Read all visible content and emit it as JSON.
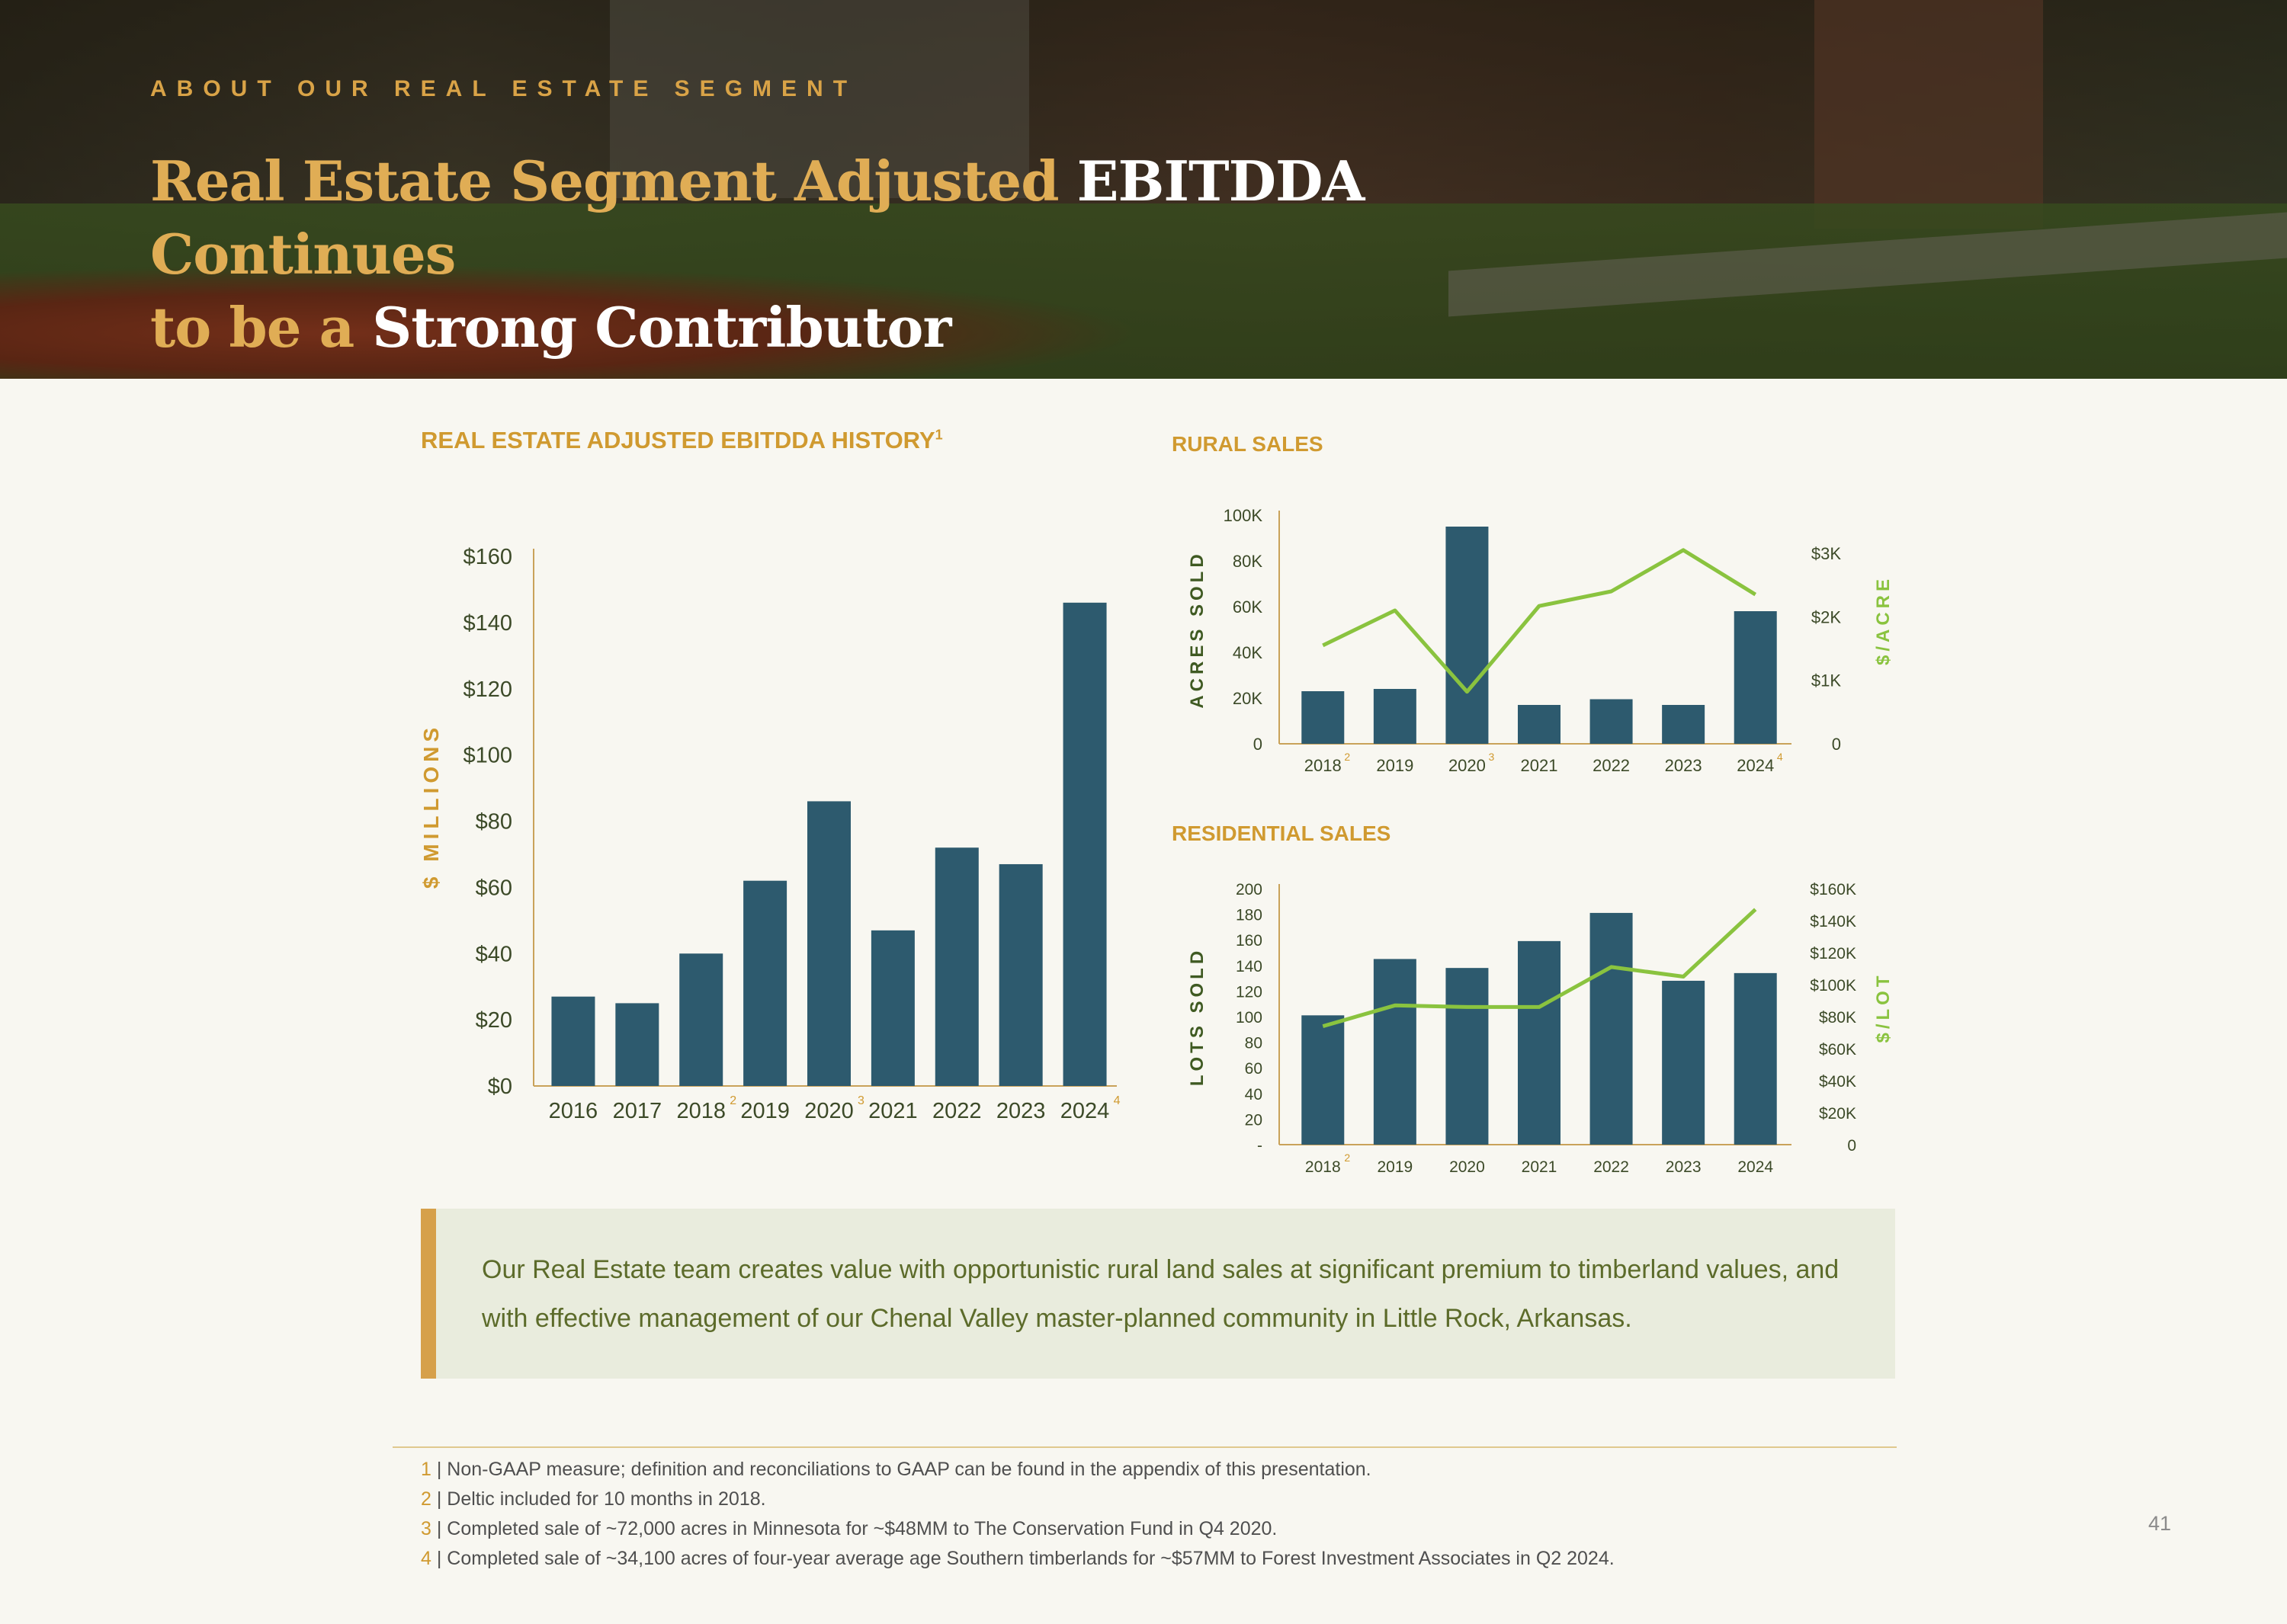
{
  "header": {
    "eyebrow": "ABOUT OUR REAL ESTATE SEGMENT",
    "title_part1": "Real Estate Segment Adjusted ",
    "title_part2": "EBITDDA",
    "title_part3": " Continues",
    "title_part4": "to be a ",
    "title_part5": "Strong Contributor"
  },
  "colors": {
    "bar": "#2d5a6e",
    "line": "#8ac33f",
    "gold": "#d09a30",
    "axis_title": "#3f5a22"
  },
  "chart_data": [
    {
      "id": "ebitdda",
      "type": "bar",
      "title": "REAL ESTATE ADJUSTED EBITDDA HISTORY",
      "title_sup": "1",
      "ylabel": "$ MILLIONS",
      "categories": [
        "2016",
        "2017",
        "2018",
        "2019",
        "2020",
        "2021",
        "2022",
        "2023",
        "2024"
      ],
      "category_notes": [
        "",
        "",
        "2",
        "",
        "3",
        "",
        "",
        "",
        "4"
      ],
      "values": [
        27,
        25,
        40,
        62,
        86,
        47,
        72,
        67,
        146
      ],
      "ylim": [
        0,
        160
      ],
      "yticks": [
        "$0",
        "$20",
        "$40",
        "$60",
        "$80",
        "$100",
        "$120",
        "$140",
        "$160"
      ],
      "grid": false
    },
    {
      "id": "rural",
      "type": "bar+line",
      "title": "RURAL SALES",
      "ylabel_left": "ACRES SOLD",
      "ylabel_right": "$/ACRE",
      "categories": [
        "2018",
        "2019",
        "2020",
        "2021",
        "2022",
        "2023",
        "2024"
      ],
      "category_notes": [
        "2",
        "",
        "3",
        "",
        "",
        "",
        "4"
      ],
      "series": [
        {
          "name": "Acres Sold",
          "type": "bar",
          "axis": "left",
          "values": [
            23000,
            24000,
            95000,
            17000,
            19500,
            17000,
            58000
          ]
        },
        {
          "name": "$/Acre",
          "type": "line",
          "axis": "right",
          "values": [
            1550,
            2100,
            820,
            2170,
            2400,
            3050,
            2350
          ]
        }
      ],
      "ylim_left": [
        0,
        100000
      ],
      "ylim_right": [
        0,
        3600
      ],
      "yticks_left": [
        "0",
        "20K",
        "40K",
        "60K",
        "80K",
        "100K"
      ],
      "yticks_right": [
        "0",
        "$1K",
        "$2K",
        "$3K"
      ]
    },
    {
      "id": "residential",
      "type": "bar+line",
      "title": "RESIDENTIAL SALES",
      "ylabel_left": "LOTS SOLD",
      "ylabel_right": "$/LOT",
      "categories": [
        "2018",
        "2019",
        "2020",
        "2021",
        "2022",
        "2023",
        "2024"
      ],
      "category_notes": [
        "2",
        "",
        "",
        "",
        "",
        "",
        ""
      ],
      "series": [
        {
          "name": "Lots Sold",
          "type": "bar",
          "axis": "left",
          "values": [
            101,
            145,
            138,
            159,
            181,
            128,
            134
          ]
        },
        {
          "name": "$/Lot",
          "type": "line",
          "axis": "right",
          "values": [
            74000,
            87000,
            86000,
            86000,
            111000,
            105000,
            147000
          ]
        }
      ],
      "ylim_left": [
        0,
        200
      ],
      "ylim_right": [
        0,
        160000
      ],
      "yticks_left": [
        "-",
        "20",
        "40",
        "60",
        "80",
        "100",
        "120",
        "140",
        "160",
        "180",
        "200"
      ],
      "yticks_right": [
        "0",
        "$20K",
        "$40K",
        "$60K",
        "$80K",
        "$100K",
        "$120K",
        "$140K",
        "$160K"
      ]
    }
  ],
  "callout": {
    "text": "Our Real Estate team creates value with opportunistic rural land sales at significant premium to timberland values, and with effective management of our Chenal Valley master-planned community in Little Rock, Arkansas."
  },
  "footnotes": [
    {
      "num": "1",
      "text": " | Non-GAAP measure; definition and reconciliations to GAAP can be found in the appendix of this presentation."
    },
    {
      "num": "2",
      "text": " | Deltic included for 10 months in 2018."
    },
    {
      "num": "3",
      "text": " | Completed sale of ~72,000 acres in Minnesota for ~$48MM to The Conservation Fund in Q4 2020."
    },
    {
      "num": "4",
      "text": " | Completed sale of ~34,100 acres of four-year average age Southern timberlands for ~$57MM to Forest Investment Associates in Q2 2024."
    }
  ],
  "page_number": "41"
}
